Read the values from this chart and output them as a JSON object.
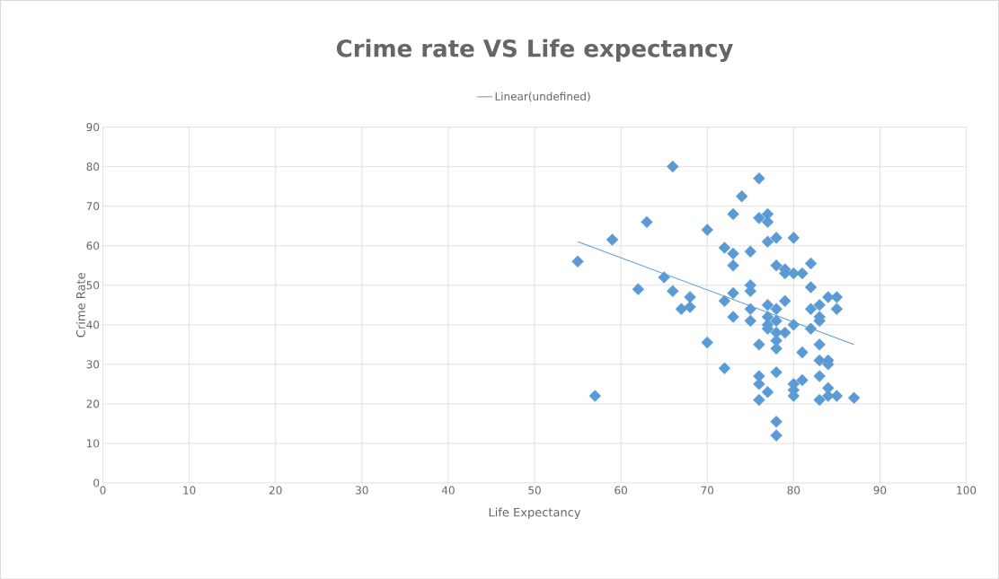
{
  "chart_data": {
    "type": "scatter",
    "title": "Crime rate VS Life expectancy",
    "xlabel": "Life Expectancy",
    "ylabel": "Crime Rate",
    "xlim": [
      0,
      100
    ],
    "xticks": [
      0,
      10,
      20,
      30,
      40,
      50,
      60,
      70,
      80,
      90,
      100
    ],
    "ylim": [
      0,
      90
    ],
    "yticks": [
      0,
      10,
      20,
      30,
      40,
      50,
      60,
      70,
      80,
      90
    ],
    "grid": true,
    "legend": "top",
    "series": [
      {
        "marker": "diamond",
        "color": "#5b9bd5",
        "x": [
          55,
          57,
          59,
          62,
          63,
          65,
          66,
          66,
          67,
          68,
          68,
          70,
          70,
          72,
          72,
          72,
          73,
          73,
          73,
          73,
          73,
          74,
          75,
          75,
          75,
          75,
          75,
          76,
          76,
          76,
          76,
          76,
          76,
          77,
          77,
          77,
          77,
          77,
          77,
          77,
          78,
          78,
          78,
          78,
          78,
          78,
          78,
          78,
          78,
          79,
          79,
          79,
          79,
          80,
          80,
          80,
          80,
          80,
          81,
          81,
          81,
          82,
          82,
          82,
          82,
          83,
          83,
          83,
          83,
          83,
          83,
          83,
          84,
          84,
          84,
          85,
          85,
          85,
          87,
          84,
          77,
          78,
          80,
          84
        ],
        "values": [
          56,
          22,
          61.5,
          49,
          66,
          52,
          80,
          48.5,
          44,
          44.5,
          47,
          64,
          35.5,
          59.5,
          46,
          29,
          68,
          58,
          55,
          48,
          42,
          72.5,
          58.5,
          50,
          48.5,
          44,
          41,
          77,
          67,
          35,
          27,
          25,
          21,
          68,
          66,
          61,
          45,
          42,
          39,
          23,
          62,
          55,
          44,
          41,
          36,
          34,
          28,
          15.5,
          12,
          54,
          53,
          46,
          38,
          62,
          53,
          40,
          25,
          23.5,
          53,
          33,
          26,
          55.5,
          49.5,
          44,
          39,
          45,
          42,
          41,
          35,
          31,
          27,
          21,
          47,
          31,
          24,
          47,
          44,
          22,
          21.5,
          30,
          40,
          38,
          22,
          22
        ]
      },
      {
        "type": "line",
        "marker": "none",
        "name": "Linear(undefined)",
        "color": "#5b9bd5",
        "x": [
          55,
          87
        ],
        "values": [
          61,
          35
        ]
      }
    ]
  }
}
